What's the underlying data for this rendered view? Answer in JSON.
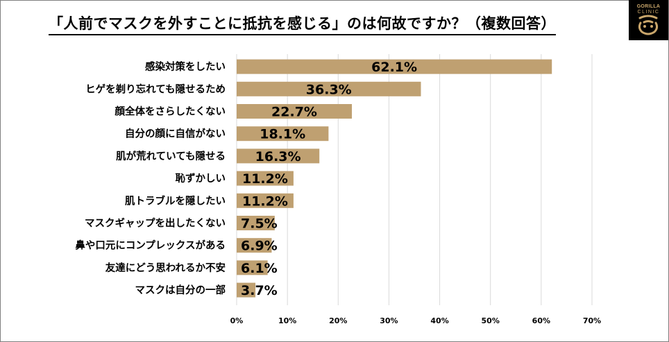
{
  "title": "「人前でマスクを外すことに抵抗を感じる」のは何故ですか？（複数回答）",
  "logo": {
    "line1": "GORILLA",
    "line2": "CLINIC",
    "icon": "gorilla-emblem-icon",
    "background": "#000000",
    "accent": "#c9a66b"
  },
  "chart_data": {
    "type": "bar",
    "orientation": "horizontal",
    "title": "「人前でマスクを外すことに抵抗を感じる」のは何故ですか？（複数回答）",
    "categories": [
      "感染対策をしたい",
      "ヒゲを剃り忘れても隠せるため",
      "顔全体をさらしたくない",
      "自分の顔に自信がない",
      "肌が荒れていても隠せる",
      "恥ずかしい",
      "肌トラブルを隠したい",
      "マスクギャップを出したくない",
      "鼻や口元にコンプレックスがある",
      "友達にどう思われるか不安",
      "マスクは自分の一部"
    ],
    "values": [
      62.1,
      36.3,
      22.7,
      18.1,
      16.3,
      11.2,
      11.2,
      7.5,
      6.9,
      6.1,
      3.7
    ],
    "value_labels": [
      "62.1%",
      "36.3%",
      "22.7%",
      "18.1%",
      "16.3%",
      "11.2%",
      "11.2%",
      "7.5%",
      "6.9%",
      "6.1%",
      "3.7%"
    ],
    "xlim": [
      0,
      70
    ],
    "xticks": [
      0,
      10,
      20,
      30,
      40,
      50,
      60,
      70
    ],
    "xtick_labels": [
      "0%",
      "10%",
      "20%",
      "30%",
      "40%",
      "50%",
      "60%",
      "70%"
    ],
    "bar_color": "#bfa071",
    "grid": true,
    "grid_color": "#d9d9d9",
    "legend": "none"
  }
}
